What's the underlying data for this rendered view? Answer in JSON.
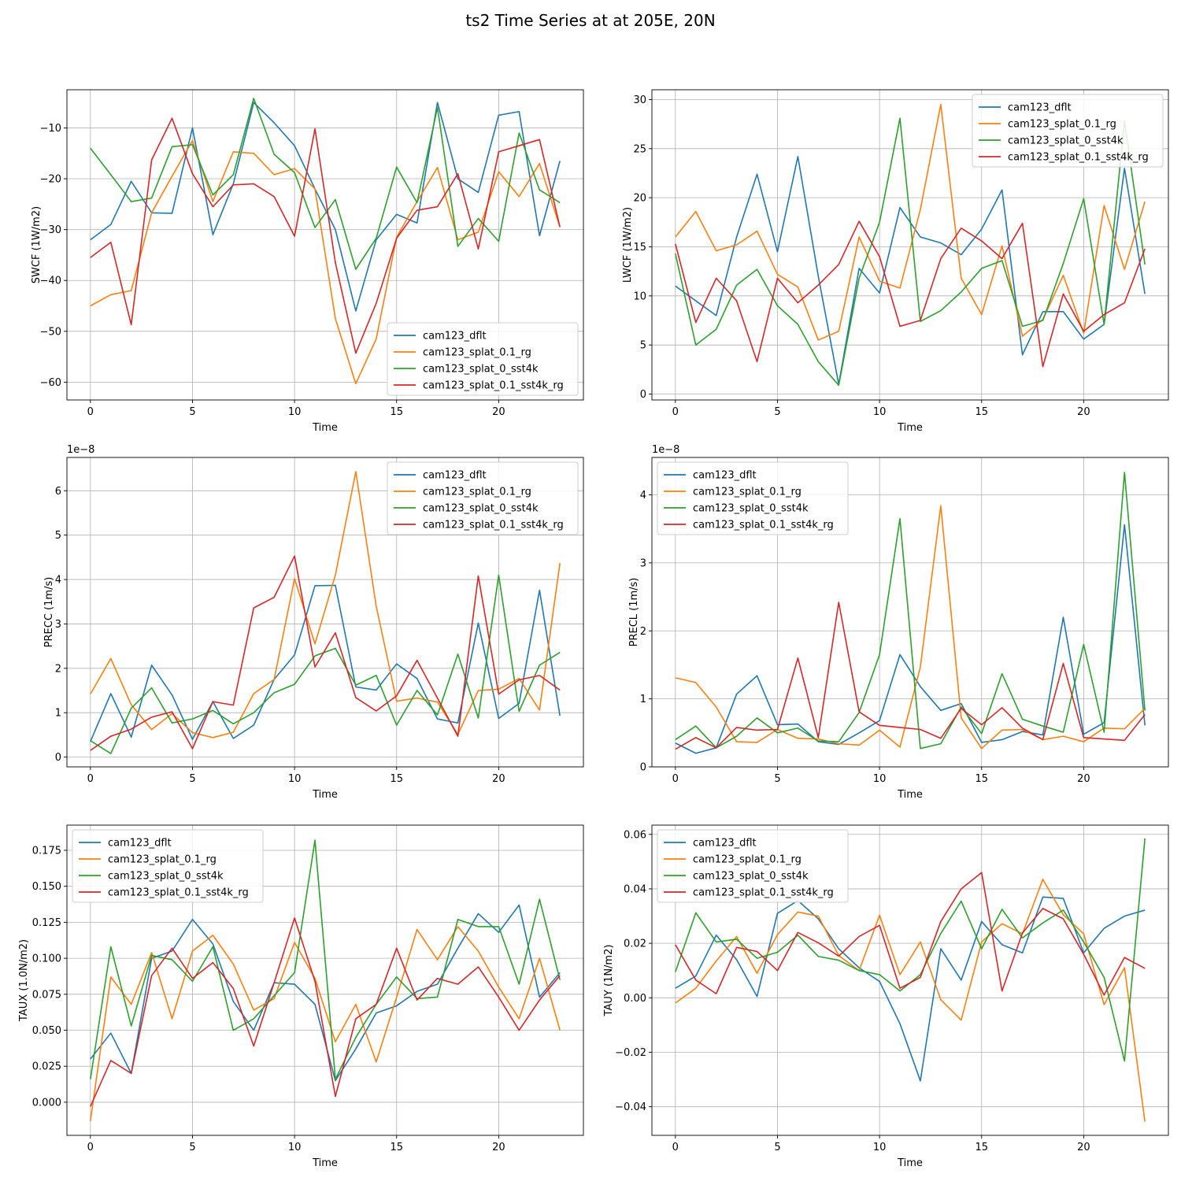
{
  "title": "ts2 Time Series at at 205E, 20N",
  "colors": {
    "cam123_dflt": "#1f77b4",
    "cam123_splat_0.1_rg": "#ff7f0e",
    "cam123_splat_0_sst4k": "#2ca02c",
    "cam123_splat_0.1_sst4k_rg": "#d62728"
  },
  "chart_data": [
    {
      "type": "line",
      "title": "",
      "xlabel": "Time",
      "ylabel": "SWCF (1W/m2)",
      "xlim": [
        -1.15,
        24.15
      ],
      "ylim": [
        -63.5,
        -2.5
      ],
      "xticks": [
        0,
        5,
        10,
        15,
        20
      ],
      "xtick_labels": [
        "0",
        "5",
        "10",
        "15",
        "20"
      ],
      "yticks": [
        -60,
        -50,
        -40,
        -30,
        -20,
        -10
      ],
      "ytick_labels": [
        "−60",
        "−50",
        "−40",
        "−30",
        "−20",
        "−10"
      ],
      "offset_label": "",
      "legend": "lower-right",
      "series": [
        {
          "name": "cam123_dflt",
          "values": [
            -32,
            -29,
            -20.5,
            -26.7,
            -26.8,
            -10,
            -31,
            -21,
            -5,
            -9,
            -13.5,
            -22,
            -30,
            -46,
            -32,
            -27,
            -28.7,
            -5,
            -20,
            -22.7,
            -7.5,
            -6.8,
            -31.2,
            -16.5
          ]
        },
        {
          "name": "cam123_splat_0.1_rg",
          "values": [
            -45,
            -42.8,
            -42,
            -26.7,
            -19.5,
            -12.5,
            -24.5,
            -14.7,
            -15,
            -19.2,
            -18,
            -22,
            -47.5,
            -60.3,
            -51.5,
            -31.5,
            -24.5,
            -17.8,
            -32,
            -30.5,
            -18.6,
            -23.5,
            -17,
            -29.5
          ]
        },
        {
          "name": "cam123_splat_0_sst4k",
          "values": [
            -14,
            -19.2,
            -24.5,
            -23.8,
            -13.7,
            -13.3,
            -23.2,
            -19.2,
            -4.2,
            -15.2,
            -18.8,
            -29.6,
            -24.1,
            -37.8,
            -31.7,
            -17.7,
            -24.7,
            -6,
            -33.3,
            -27.8,
            -32.3,
            -11,
            -22.2,
            -24.7
          ]
        },
        {
          "name": "cam123_splat_0.1_sst4k_rg",
          "values": [
            -35.5,
            -32.5,
            -48.7,
            -16.3,
            -8.1,
            -19,
            -25.5,
            -21.2,
            -21,
            -23.5,
            -31.3,
            -10.2,
            -36.5,
            -54.3,
            -44.5,
            -31.7,
            -26.2,
            -25.5,
            -19,
            -33.8,
            -14.7,
            -13.5,
            -12.3,
            -29.5
          ]
        }
      ]
    },
    {
      "type": "line",
      "title": "",
      "xlabel": "Time",
      "ylabel": "LWCF (1W/m2)",
      "xlim": [
        -1.15,
        24.15
      ],
      "ylim": [
        -0.6,
        31
      ],
      "xticks": [
        0,
        5,
        10,
        15,
        20
      ],
      "xtick_labels": [
        "0",
        "5",
        "10",
        "15",
        "20"
      ],
      "yticks": [
        0,
        5,
        10,
        15,
        20,
        25,
        30
      ],
      "ytick_labels": [
        "0",
        "5",
        "10",
        "15",
        "20",
        "25",
        "30"
      ],
      "offset_label": "",
      "legend": "upper-right",
      "series": [
        {
          "name": "cam123_dflt",
          "values": [
            11,
            9.5,
            8,
            16,
            22.4,
            14.5,
            24.2,
            12,
            1,
            12.8,
            10.3,
            19,
            16,
            15.4,
            14.2,
            16.8,
            20.8,
            4,
            8.4,
            8.4,
            5.6,
            7.1,
            23,
            10.2
          ]
        },
        {
          "name": "cam123_splat_0.1_rg",
          "values": [
            16,
            18.6,
            14.6,
            15.2,
            16.6,
            12.2,
            10.9,
            5.5,
            6.4,
            16,
            11.5,
            10.8,
            18.8,
            29.5,
            11.8,
            8.1,
            15.1,
            5.9,
            7.6,
            12.1,
            6.2,
            19.2,
            12.7,
            19.6
          ]
        },
        {
          "name": "cam123_splat_0_sst4k",
          "values": [
            14.3,
            5,
            6.6,
            11.1,
            12.7,
            9,
            7.1,
            3.3,
            0.9,
            11.8,
            17.5,
            28.1,
            7.4,
            8.5,
            10.4,
            12.8,
            13.6,
            6.9,
            7.5,
            13.3,
            19.9,
            7.1,
            27.8,
            13.2
          ]
        },
        {
          "name": "cam123_splat_0.1_sst4k_rg",
          "values": [
            15.3,
            7.3,
            11.8,
            9.5,
            3.3,
            11.8,
            9.3,
            11.1,
            13.2,
            17.6,
            14,
            6.9,
            7.5,
            13.8,
            16.9,
            15.6,
            13.8,
            17.4,
            2.8,
            10.2,
            6.4,
            8.1,
            9.3,
            14.8
          ]
        }
      ]
    },
    {
      "type": "line",
      "title": "",
      "xlabel": "Time",
      "ylabel": "PRECC (1m/s)",
      "xlim": [
        -1.15,
        24.15
      ],
      "ylim": [
        -0.22,
        6.75
      ],
      "xticks": [
        0,
        5,
        10,
        15,
        20
      ],
      "xtick_labels": [
        "0",
        "5",
        "10",
        "15",
        "20"
      ],
      "yticks": [
        0,
        1,
        2,
        3,
        4,
        5,
        6
      ],
      "ytick_labels": [
        "0",
        "1",
        "2",
        "3",
        "4",
        "5",
        "6"
      ],
      "offset_label": "1e−8",
      "legend": "upper-right",
      "series": [
        {
          "name": "cam123_dflt",
          "values": [
            0.35,
            1.43,
            0.45,
            2.07,
            1.4,
            0.4,
            1.25,
            0.42,
            0.72,
            1.75,
            2.3,
            3.86,
            3.87,
            1.58,
            1.51,
            2.1,
            1.77,
            0.86,
            0.77,
            3.02,
            0.87,
            1.21,
            3.76,
            0.93
          ]
        },
        {
          "name": "cam123_splat_0.1_rg",
          "values": [
            1.42,
            2.22,
            1.18,
            0.62,
            0.98,
            0.55,
            0.44,
            0.56,
            1.43,
            1.75,
            4.02,
            2.55,
            4.1,
            6.43,
            3.4,
            1.26,
            1.33,
            1.24,
            0.51,
            1.5,
            1.53,
            1.77,
            1.06,
            4.37
          ]
        },
        {
          "name": "cam123_splat_0_sst4k",
          "values": [
            0.37,
            0.08,
            1.1,
            1.56,
            0.77,
            0.86,
            1.05,
            0.75,
            1.0,
            1.45,
            1.64,
            2.28,
            2.45,
            1.62,
            1.84,
            0.72,
            1.5,
            0.95,
            2.32,
            0.88,
            4.1,
            1.03,
            2.07,
            2.36
          ]
        },
        {
          "name": "cam123_splat_0.1_sst4k_rg",
          "values": [
            0.15,
            0.47,
            0.63,
            0.9,
            1.02,
            0.19,
            1.25,
            1.17,
            3.36,
            3.6,
            4.53,
            2.03,
            2.8,
            1.34,
            1.04,
            1.38,
            2.18,
            1.33,
            0.47,
            4.08,
            1.42,
            1.74,
            1.84,
            1.51
          ]
        }
      ]
    },
    {
      "type": "line",
      "title": "",
      "xlabel": "Time",
      "ylabel": "PRECL (1m/s)",
      "xlim": [
        -1.15,
        24.15
      ],
      "ylim": [
        0,
        4.55
      ],
      "xticks": [
        0,
        5,
        10,
        15,
        20
      ],
      "xtick_labels": [
        "0",
        "5",
        "10",
        "15",
        "20"
      ],
      "yticks": [
        0,
        1,
        2,
        3,
        4
      ],
      "ytick_labels": [
        "0",
        "1",
        "2",
        "3",
        "4"
      ],
      "offset_label": "1e−8",
      "legend": "upper-left",
      "series": [
        {
          "name": "cam123_dflt",
          "values": [
            0.35,
            0.2,
            0.28,
            1.07,
            1.34,
            0.62,
            0.63,
            0.37,
            0.33,
            0.5,
            0.68,
            1.65,
            1.18,
            0.83,
            0.93,
            0.36,
            0.4,
            0.52,
            0.47,
            2.2,
            0.48,
            0.65,
            3.56,
            0.61
          ]
        },
        {
          "name": "cam123_splat_0.1_rg",
          "values": [
            1.31,
            1.24,
            0.88,
            0.37,
            0.36,
            0.55,
            0.42,
            0.41,
            0.34,
            0.32,
            0.54,
            0.29,
            1.47,
            3.84,
            0.72,
            0.27,
            0.54,
            0.55,
            0.4,
            0.45,
            0.37,
            0.57,
            0.56,
            0.86
          ]
        },
        {
          "name": "cam123_splat_0_sst4k",
          "values": [
            0.4,
            0.6,
            0.28,
            0.45,
            0.72,
            0.5,
            0.57,
            0.38,
            0.37,
            0.8,
            1.65,
            3.65,
            0.27,
            0.34,
            0.88,
            0.49,
            1.37,
            0.7,
            0.6,
            0.51,
            1.8,
            0.51,
            4.33,
            0.83
          ]
        },
        {
          "name": "cam123_splat_0.1_sst4k_rg",
          "values": [
            0.26,
            0.43,
            0.28,
            0.58,
            0.54,
            0.55,
            1.6,
            0.43,
            2.42,
            0.81,
            0.61,
            0.58,
            0.55,
            0.42,
            0.86,
            0.62,
            0.87,
            0.57,
            0.4,
            1.52,
            0.43,
            0.41,
            0.39,
            0.77
          ]
        }
      ]
    },
    {
      "type": "line",
      "title": "",
      "xlabel": "Time",
      "ylabel": "TAUX (1.0N/m2)",
      "xlim": [
        -1.15,
        24.15
      ],
      "ylim": [
        -0.023,
        0.1925
      ],
      "xticks": [
        0,
        5,
        10,
        15,
        20
      ],
      "xtick_labels": [
        "0",
        "5",
        "10",
        "15",
        "20"
      ],
      "yticks": [
        0,
        0.025,
        0.05,
        0.075,
        0.1,
        0.125,
        0.15,
        0.175
      ],
      "ytick_labels": [
        "0.000",
        "0.025",
        "0.050",
        "0.075",
        "0.100",
        "0.125",
        "0.150",
        "0.175"
      ],
      "offset_label": "",
      "legend": "upper-left",
      "series": [
        {
          "name": "cam123_dflt",
          "values": [
            0.03,
            0.048,
            0.02,
            0.1,
            0.105,
            0.127,
            0.11,
            0.07,
            0.05,
            0.083,
            0.082,
            0.068,
            0.015,
            0.037,
            0.062,
            0.067,
            0.077,
            0.082,
            0.107,
            0.131,
            0.118,
            0.137,
            0.073,
            0.09
          ]
        },
        {
          "name": "cam123_splat_0.1_rg",
          "values": [
            -0.013,
            0.087,
            0.068,
            0.104,
            0.058,
            0.105,
            0.116,
            0.096,
            0.064,
            0.072,
            0.111,
            0.086,
            0.042,
            0.068,
            0.028,
            0.073,
            0.12,
            0.099,
            0.122,
            0.105,
            0.08,
            0.058,
            0.1,
            0.05
          ]
        },
        {
          "name": "cam123_splat_0_sst4k",
          "values": [
            0.016,
            0.108,
            0.053,
            0.102,
            0.099,
            0.084,
            0.108,
            0.05,
            0.058,
            0.074,
            0.09,
            0.182,
            0.016,
            0.045,
            0.068,
            0.087,
            0.072,
            0.073,
            0.127,
            0.122,
            0.122,
            0.082,
            0.141,
            0.085
          ]
        },
        {
          "name": "cam123_splat_0.1_sst4k_rg",
          "values": [
            -0.003,
            0.029,
            0.02,
            0.088,
            0.107,
            0.086,
            0.097,
            0.079,
            0.039,
            0.083,
            0.128,
            0.084,
            0.004,
            0.058,
            0.068,
            0.107,
            0.071,
            0.086,
            0.082,
            0.094,
            0.073,
            0.05,
            0.071,
            0.088
          ]
        }
      ]
    },
    {
      "type": "line",
      "title": "",
      "xlabel": "Time",
      "ylabel": "TAUY (1N/m2)",
      "xlim": [
        -1.15,
        24.15
      ],
      "ylim": [
        -0.0505,
        0.0634
      ],
      "xticks": [
        0,
        5,
        10,
        15,
        20
      ],
      "xtick_labels": [
        "0",
        "5",
        "10",
        "15",
        "20"
      ],
      "yticks": [
        -0.04,
        -0.02,
        0,
        0.02,
        0.04,
        0.06
      ],
      "ytick_labels": [
        "−0.04",
        "−0.02",
        "0.00",
        "0.02",
        "0.04",
        "0.06"
      ],
      "offset_label": "",
      "legend": "upper-left",
      "series": [
        {
          "name": "cam123_dflt",
          "values": [
            0.0035,
            0.008,
            0.023,
            0.014,
            0.0005,
            0.031,
            0.0357,
            0.029,
            0.018,
            0.011,
            0.006,
            -0.0095,
            -0.0305,
            0.018,
            0.0065,
            0.028,
            0.0195,
            0.0165,
            0.037,
            0.0365,
            0.0165,
            0.0255,
            0.03,
            0.0322
          ]
        },
        {
          "name": "cam123_splat_0.1_rg",
          "values": [
            -0.0019,
            0.0035,
            0.0135,
            0.0225,
            0.009,
            0.0232,
            0.0315,
            0.03,
            0.0155,
            0.01,
            0.0303,
            0.0085,
            0.0205,
            -0.0007,
            -0.0082,
            0.0205,
            0.0272,
            0.0235,
            0.0435,
            0.0305,
            0.0235,
            -0.0025,
            0.011,
            -0.0455
          ]
        },
        {
          "name": "cam123_splat_0_sst4k",
          "values": [
            0.0095,
            0.0312,
            0.0205,
            0.0215,
            0.0145,
            0.0167,
            0.023,
            0.0152,
            0.0138,
            0.01,
            0.0085,
            0.0025,
            0.0085,
            0.0236,
            0.0355,
            0.018,
            0.0325,
            0.022,
            0.0275,
            0.0322,
            0.0205,
            0.0075,
            -0.0232,
            0.0585
          ]
        },
        {
          "name": "cam123_splat_0.1_sst4k_rg",
          "values": [
            0.0195,
            0.0065,
            0.0015,
            0.0185,
            0.017,
            0.01,
            0.024,
            0.0202,
            0.0153,
            0.0225,
            0.0266,
            0.0035,
            0.0075,
            0.028,
            0.04,
            0.046,
            0.0025,
            0.0238,
            0.0328,
            0.029,
            0.016,
            0.001,
            0.0148,
            0.0108
          ]
        }
      ]
    }
  ]
}
